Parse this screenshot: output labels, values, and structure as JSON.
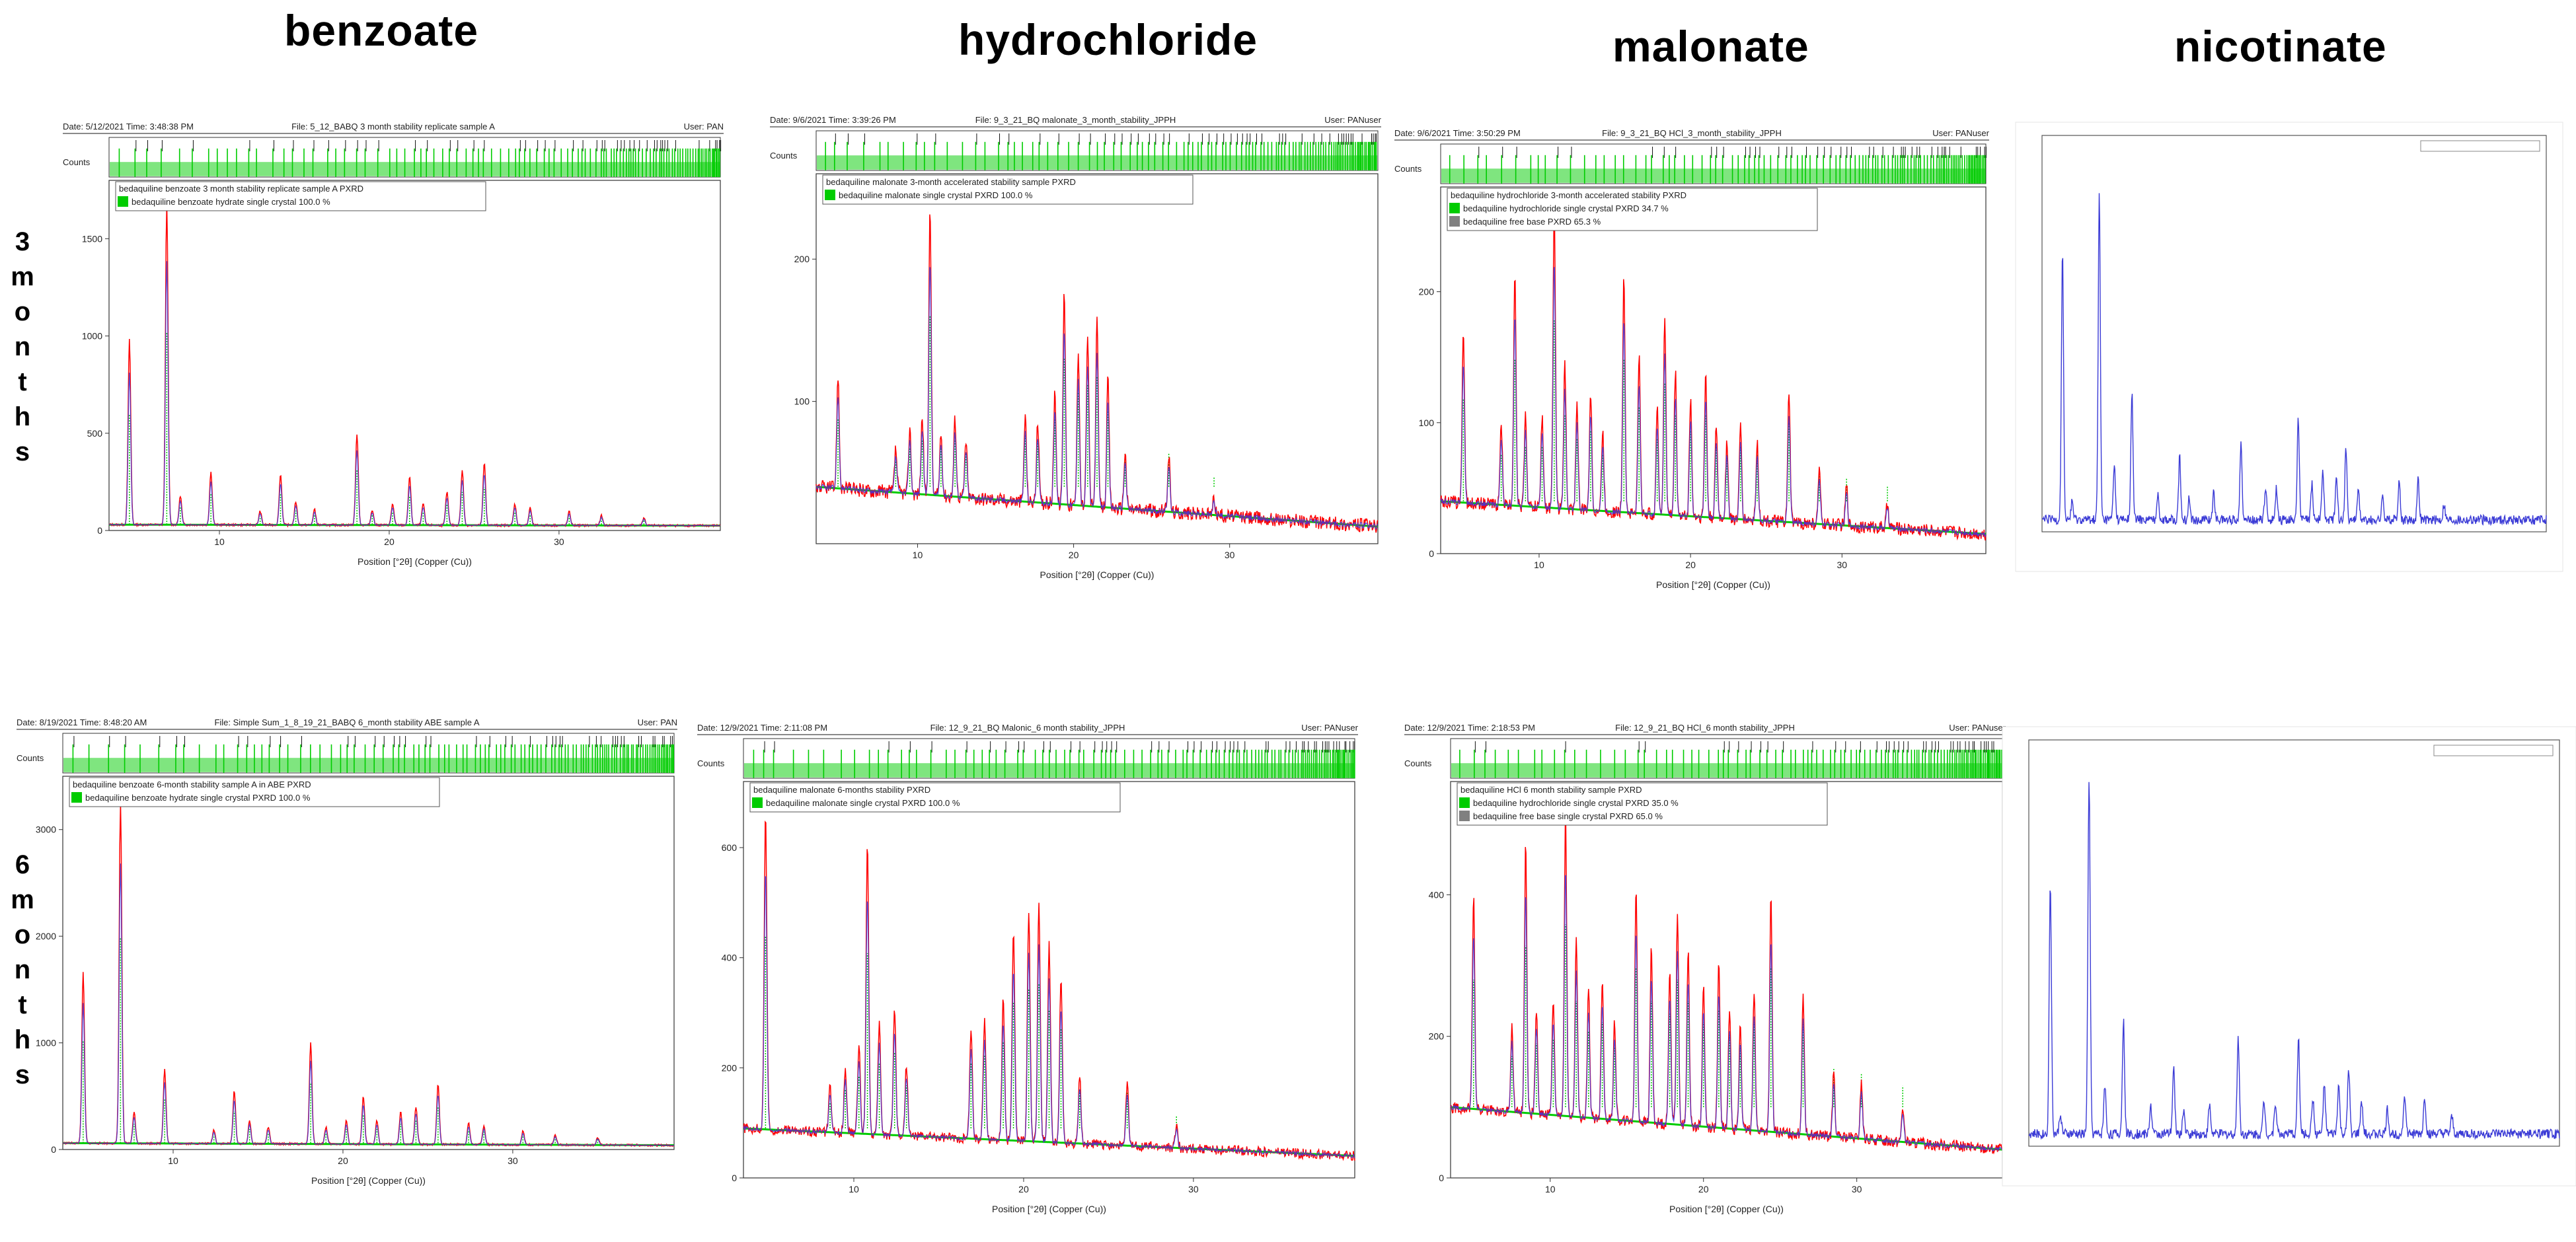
{
  "columns": [
    "benzoate",
    "hydrochloride",
    "malonate",
    "nicotinate"
  ],
  "rows": [
    {
      "id": "3m",
      "label_chars": [
        "3",
        "m",
        "o",
        "n",
        "t",
        "h",
        "s"
      ]
    },
    {
      "id": "6m",
      "label_chars": [
        "6",
        "m",
        "o",
        "n",
        "t",
        "h",
        "s"
      ]
    }
  ],
  "colors": {
    "obs": "#ff0000",
    "calc": "#3a3ae0",
    "bkg": "#00cc00",
    "ref": "#00cc00",
    "ref2": "#808080",
    "nic": "#3b3bd6"
  },
  "chart_data": [
    {
      "id": "b3",
      "type": "line",
      "header": {
        "date": "Date: 5/12/2021  Time: 3:48:38 PM",
        "file": "File: 5_12_BABQ 3 month stability replicate sample A",
        "user": "User: PAN"
      },
      "counts_label": "Counts",
      "legend_title": "bedaquiline benzoate 3 month stability replicate sample A PXRD",
      "legend_items": [
        {
          "label": "bedaquiline benzoate hydrate single crystal 100.0 %",
          "color": "#00cc00"
        }
      ],
      "xlabel": "Position [°2θ] (Copper (Cu))",
      "xlim": [
        3.5,
        39.5
      ],
      "ylim": [
        0,
        1800
      ],
      "x_ticks": [
        10,
        20,
        30
      ],
      "y_ticks": [
        0,
        500,
        1000,
        1500
      ],
      "baseline": [
        30,
        25
      ],
      "noise": 6,
      "peaks": [
        [
          4.7,
          950
        ],
        [
          6.9,
          1650
        ],
        [
          7.7,
          150
        ],
        [
          9.5,
          270
        ],
        [
          12.4,
          70
        ],
        [
          13.6,
          260
        ],
        [
          14.5,
          120
        ],
        [
          15.6,
          80
        ],
        [
          18.1,
          470
        ],
        [
          19.0,
          80
        ],
        [
          20.2,
          110
        ],
        [
          21.2,
          250
        ],
        [
          22.0,
          110
        ],
        [
          23.4,
          170
        ],
        [
          24.3,
          280
        ],
        [
          25.6,
          320
        ],
        [
          27.4,
          110
        ],
        [
          28.3,
          90
        ],
        [
          30.6,
          70
        ],
        [
          32.5,
          50
        ],
        [
          35.0,
          40
        ]
      ]
    },
    {
      "id": "h3",
      "type": "line",
      "header": {
        "date": "Date: 9/6/2021  Time: 3:39:26 PM",
        "file": "File: 9_3_21_BQ malonate_3_month_stability_JPPH",
        "user": "User: PANuser"
      },
      "counts_label": "Counts",
      "legend_title": "bedaquiline malonate 3-month accelerated stability sample PXRD",
      "legend_items": [
        {
          "label": "bedaquiline malonate single crystal PXRD 100.0 %",
          "color": "#00cc00"
        }
      ],
      "xlabel": "Position [°2θ] (Copper (Cu))",
      "xlim": [
        3.5,
        39.5
      ],
      "ylim": [
        0,
        260
      ],
      "x_ticks": [
        10,
        20,
        30
      ],
      "y_ticks": [
        100,
        200
      ],
      "baseline": [
        40,
        12
      ],
      "noise": 5,
      "peaks": [
        [
          4.9,
          80
        ],
        [
          8.6,
          30
        ],
        [
          9.5,
          45
        ],
        [
          10.3,
          55
        ],
        [
          10.8,
          200
        ],
        [
          11.5,
          45
        ],
        [
          12.4,
          55
        ],
        [
          13.1,
          40
        ],
        [
          16.9,
          60
        ],
        [
          17.7,
          55
        ],
        [
          18.8,
          80
        ],
        [
          19.4,
          150
        ],
        [
          20.3,
          110
        ],
        [
          20.9,
          120
        ],
        [
          21.5,
          130
        ],
        [
          22.2,
          90
        ],
        [
          23.3,
          40
        ],
        [
          26.1,
          40
        ],
        [
          29.0,
          12
        ]
      ]
    },
    {
      "id": "m3",
      "type": "line",
      "header": {
        "date": "Date: 9/6/2021  Time: 3:50:29 PM",
        "file": "File: 9_3_21_BQ HCl_3_month_stability_JPPH",
        "user": "User: PANuser"
      },
      "counts_label": "Counts",
      "legend_title": "bedaquiline hydrochloride 3-month accelerated stability PXRD",
      "legend_items": [
        {
          "label": "bedaquiline hydrochloride single crystal PXRD 34.7 %",
          "color": "#00cc00"
        },
        {
          "label": "bedaquiline free base PXRD 65.3 %",
          "color": "#808080"
        }
      ],
      "xlabel": "Position [°2θ] (Copper (Cu))",
      "xlim": [
        3.5,
        39.5
      ],
      "ylim": [
        0,
        280
      ],
      "x_ticks": [
        10,
        20,
        30
      ],
      "y_ticks": [
        0,
        100,
        200
      ],
      "baseline": [
        40,
        15
      ],
      "noise": 5,
      "peaks": [
        [
          5.0,
          130
        ],
        [
          7.5,
          60
        ],
        [
          8.4,
          180
        ],
        [
          9.1,
          70
        ],
        [
          10.2,
          70
        ],
        [
          11.0,
          230
        ],
        [
          11.7,
          110
        ],
        [
          12.5,
          80
        ],
        [
          13.4,
          90
        ],
        [
          14.2,
          60
        ],
        [
          15.6,
          180
        ],
        [
          16.6,
          120
        ],
        [
          17.8,
          80
        ],
        [
          18.3,
          150
        ],
        [
          19.0,
          110
        ],
        [
          20.0,
          90
        ],
        [
          21.0,
          110
        ],
        [
          21.7,
          70
        ],
        [
          22.4,
          60
        ],
        [
          23.3,
          70
        ],
        [
          24.4,
          60
        ],
        [
          26.5,
          100
        ],
        [
          28.5,
          40
        ],
        [
          30.3,
          30
        ],
        [
          33.0,
          20
        ]
      ]
    },
    {
      "id": "n3",
      "type": "line",
      "frameless": true,
      "xlim": [
        3,
        40
      ],
      "ylim": [
        0,
        100
      ],
      "baseline": [
        3,
        3
      ],
      "noise": 1.2,
      "peaks": [
        [
          4.5,
          68
        ],
        [
          5.2,
          5
        ],
        [
          7.2,
          82
        ],
        [
          8.3,
          14
        ],
        [
          9.6,
          32
        ],
        [
          11.5,
          7
        ],
        [
          13.1,
          16
        ],
        [
          13.8,
          6
        ],
        [
          15.6,
          7
        ],
        [
          17.6,
          20
        ],
        [
          19.4,
          8
        ],
        [
          20.2,
          8
        ],
        [
          21.8,
          25
        ],
        [
          22.8,
          9
        ],
        [
          23.6,
          12
        ],
        [
          24.6,
          12
        ],
        [
          25.3,
          18
        ],
        [
          26.2,
          8
        ],
        [
          28.0,
          6
        ],
        [
          29.2,
          10
        ],
        [
          30.6,
          10
        ],
        [
          32.5,
          4
        ]
      ]
    },
    {
      "id": "b6",
      "type": "line",
      "header": {
        "date": "Date: 8/19/2021  Time: 8:48:20 AM",
        "file": "File: Simple Sum_1_8_19_21_BABQ 6_month stability ABE sample A",
        "user": "User: PAN"
      },
      "counts_label": "Counts",
      "legend_title": "bedaquiline benzoate 6-month stability sample A in ABE PXRD",
      "legend_items": [
        {
          "label": "bedaquiline benzoate hydrate single crystal PXRD 100.0 %",
          "color": "#00cc00"
        }
      ],
      "xlabel": "Position [°2θ] (Copper (Cu))",
      "xlim": [
        3.5,
        39.5
      ],
      "ylim": [
        0,
        3500
      ],
      "x_ticks": [
        10,
        20,
        30
      ],
      "y_ticks": [
        0,
        1000,
        2000,
        3000
      ],
      "baseline": [
        60,
        40
      ],
      "noise": 10,
      "peaks": [
        [
          4.7,
          1600
        ],
        [
          6.9,
          3200
        ],
        [
          7.7,
          300
        ],
        [
          9.5,
          700
        ],
        [
          12.4,
          130
        ],
        [
          13.6,
          500
        ],
        [
          14.5,
          220
        ],
        [
          15.6,
          160
        ],
        [
          18.1,
          950
        ],
        [
          19.0,
          160
        ],
        [
          20.2,
          220
        ],
        [
          21.2,
          450
        ],
        [
          22.0,
          220
        ],
        [
          23.4,
          300
        ],
        [
          24.3,
          350
        ],
        [
          25.6,
          570
        ],
        [
          27.4,
          200
        ],
        [
          28.3,
          180
        ],
        [
          30.6,
          130
        ],
        [
          32.5,
          90
        ],
        [
          35.0,
          70
        ]
      ]
    },
    {
      "id": "h6",
      "type": "line",
      "header": {
        "date": "Date: 12/9/2021  Time: 2:11:08 PM",
        "file": "File: 12_9_21_BQ Malonic_6 month stability_JPPH",
        "user": "User: PANuser"
      },
      "counts_label": "Counts",
      "legend_title": "bedaquiline malonate 6-months stability PXRD",
      "legend_items": [
        {
          "label": "bedaquiline malonate single crystal PXRD 100.0 %",
          "color": "#00cc00"
        }
      ],
      "xlabel": "Position [°2θ] (Copper (Cu))",
      "xlim": [
        3.5,
        39.5
      ],
      "ylim": [
        0,
        720
      ],
      "x_ticks": [
        10,
        20,
        30
      ],
      "y_ticks": [
        0,
        200,
        400,
        600
      ],
      "baseline": [
        90,
        40
      ],
      "noise": 9,
      "peaks": [
        [
          4.8,
          580
        ],
        [
          8.6,
          80
        ],
        [
          9.5,
          120
        ],
        [
          10.3,
          160
        ],
        [
          10.8,
          530
        ],
        [
          11.5,
          200
        ],
        [
          12.4,
          230
        ],
        [
          13.1,
          130
        ],
        [
          16.9,
          200
        ],
        [
          17.7,
          220
        ],
        [
          18.8,
          260
        ],
        [
          19.4,
          380
        ],
        [
          20.3,
          420
        ],
        [
          20.9,
          440
        ],
        [
          21.5,
          360
        ],
        [
          22.2,
          300
        ],
        [
          23.3,
          120
        ],
        [
          26.1,
          110
        ],
        [
          29.0,
          40
        ]
      ]
    },
    {
      "id": "m6",
      "type": "line",
      "header": {
        "date": "Date: 12/9/2021  Time: 2:18:53 PM",
        "file": "File: 12_9_21_BQ HCl_6 month stability_JPPH",
        "user": "User: PANuser"
      },
      "counts_label": "Counts",
      "legend_title": "bedaquiline HCl 6 month stability sample PXRD",
      "legend_items": [
        {
          "label": "bedaquiline hydrochloride single crystal PXRD 35.0 %",
          "color": "#00cc00"
        },
        {
          "label": "bedaquiline free base single crystal PXRD 65.0 %",
          "color": "#808080"
        }
      ],
      "xlabel": "Position [°2θ] (Copper (Cu))",
      "xlim": [
        3.5,
        39.5
      ],
      "ylim": [
        0,
        560
      ],
      "x_ticks": [
        10,
        20,
        30
      ],
      "y_ticks": [
        0,
        200,
        400
      ],
      "baseline": [
        100,
        40
      ],
      "noise": 8,
      "peaks": [
        [
          5.0,
          300
        ],
        [
          7.5,
          120
        ],
        [
          8.4,
          380
        ],
        [
          9.1,
          150
        ],
        [
          10.2,
          160
        ],
        [
          11.0,
          430
        ],
        [
          11.7,
          250
        ],
        [
          12.5,
          180
        ],
        [
          13.4,
          200
        ],
        [
          14.2,
          140
        ],
        [
          15.6,
          330
        ],
        [
          16.6,
          250
        ],
        [
          17.8,
          220
        ],
        [
          18.3,
          300
        ],
        [
          19.0,
          250
        ],
        [
          20.0,
          200
        ],
        [
          21.0,
          230
        ],
        [
          21.7,
          170
        ],
        [
          22.4,
          150
        ],
        [
          23.3,
          200
        ],
        [
          24.4,
          330
        ],
        [
          26.5,
          200
        ],
        [
          28.5,
          90
        ],
        [
          30.3,
          80
        ],
        [
          33.0,
          50
        ]
      ]
    },
    {
      "id": "n6",
      "type": "line",
      "frameless": true,
      "xlim": [
        3,
        40
      ],
      "ylim": [
        0,
        100
      ],
      "baseline": [
        3,
        3
      ],
      "noise": 1.2,
      "peaks": [
        [
          4.5,
          62
        ],
        [
          5.2,
          5
        ],
        [
          7.2,
          88
        ],
        [
          8.3,
          12
        ],
        [
          9.6,
          28
        ],
        [
          11.5,
          7
        ],
        [
          13.1,
          16
        ],
        [
          13.8,
          6
        ],
        [
          15.6,
          7
        ],
        [
          17.6,
          24
        ],
        [
          19.4,
          8
        ],
        [
          20.2,
          8
        ],
        [
          21.8,
          24
        ],
        [
          22.8,
          9
        ],
        [
          23.6,
          12
        ],
        [
          24.6,
          12
        ],
        [
          25.3,
          16
        ],
        [
          26.2,
          8
        ],
        [
          28.0,
          6
        ],
        [
          29.2,
          10
        ],
        [
          30.6,
          9
        ],
        [
          32.5,
          4
        ]
      ]
    }
  ]
}
